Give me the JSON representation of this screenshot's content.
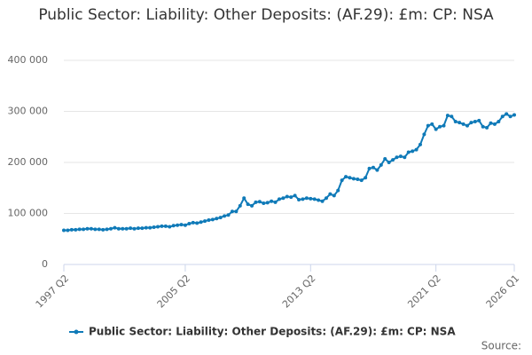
{
  "chart_data": {
    "type": "line",
    "title": "Public Sector: Liability: Other Deposits: (AF.29): £m: CP: NSA",
    "source": "Source:",
    "categories": [
      "1997 Q2",
      null,
      null,
      null,
      null,
      null,
      null,
      null,
      null,
      null,
      null,
      null,
      null,
      null,
      null,
      null,
      null,
      null,
      null,
      null,
      null,
      null,
      null,
      null,
      null,
      null,
      null,
      null,
      null,
      null,
      null,
      "2005 Q2",
      null,
      null,
      null,
      null,
      null,
      null,
      null,
      null,
      null,
      null,
      null,
      null,
      null,
      null,
      null,
      null,
      null,
      null,
      null,
      null,
      null,
      null,
      null,
      null,
      null,
      null,
      null,
      null,
      null,
      null,
      null,
      "2013 Q2",
      null,
      null,
      null,
      null,
      null,
      null,
      null,
      null,
      null,
      null,
      null,
      null,
      null,
      null,
      null,
      null,
      null,
      null,
      null,
      null,
      null,
      null,
      null,
      null,
      null,
      null,
      null,
      null,
      null,
      null,
      null,
      "2021 Q2",
      null,
      null,
      null,
      null,
      null,
      null,
      null,
      null,
      null,
      null,
      null,
      null,
      null,
      null,
      null,
      null,
      null,
      null,
      null,
      "2026 Q1"
    ],
    "series": [
      {
        "name": "Public Sector: Liability: Other Deposits: (AF.29): £m: CP: NSA",
        "color": "#0f7ab8",
        "values": [
          67000,
          67000,
          68000,
          68000,
          69000,
          69000,
          70000,
          70000,
          69000,
          69000,
          68000,
          69000,
          70000,
          72000,
          70000,
          70000,
          70000,
          71000,
          70000,
          71000,
          71000,
          72000,
          72000,
          73000,
          74000,
          75000,
          75000,
          74000,
          76000,
          77000,
          78000,
          77000,
          80000,
          82000,
          81000,
          83000,
          85000,
          87000,
          88000,
          90000,
          92000,
          95000,
          97000,
          104000,
          104000,
          115000,
          130000,
          118000,
          115000,
          122000,
          123000,
          120000,
          121000,
          124000,
          122000,
          128000,
          130000,
          133000,
          132000,
          135000,
          127000,
          128000,
          130000,
          129000,
          128000,
          126000,
          124000,
          130000,
          138000,
          135000,
          145000,
          165000,
          172000,
          170000,
          168000,
          167000,
          165000,
          170000,
          188000,
          190000,
          185000,
          195000,
          207000,
          200000,
          205000,
          210000,
          212000,
          210000,
          220000,
          222000,
          225000,
          235000,
          255000,
          272000,
          275000,
          265000,
          270000,
          272000,
          292000,
          290000,
          280000,
          278000,
          275000,
          272000,
          278000,
          280000,
          282000,
          270000,
          268000,
          277000,
          275000,
          280000,
          290000,
          295000,
          290000,
          293000
        ]
      }
    ],
    "ylim": [
      0,
      400000
    ],
    "yticks": [
      0,
      {
        "value": 100000,
        "label": "100 000"
      },
      {
        "value": 200000,
        "label": "200 000"
      },
      {
        "value": 300000,
        "label": "300 000"
      },
      {
        "value": 400000,
        "label": "400 000"
      }
    ],
    "grid": true
  }
}
